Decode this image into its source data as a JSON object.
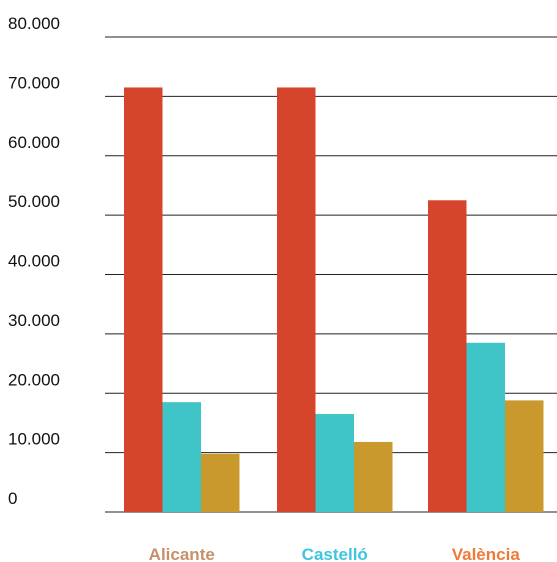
{
  "chart_data": {
    "type": "bar",
    "categories": [
      "Alicante",
      "Castelló",
      "València"
    ],
    "category_label_colors": [
      "#c8906a",
      "#3ec6de",
      "#ef7a3a"
    ],
    "series": [
      {
        "values": [
          71500,
          71500,
          52500
        ],
        "color": "#d4452b"
      },
      {
        "values": [
          18500,
          16500,
          28500
        ],
        "color": "#3fc4c8"
      },
      {
        "values": [
          9800,
          11800,
          18800
        ],
        "color": "#c9992e"
      }
    ],
    "ylim": [
      0,
      80000
    ],
    "yticks": [
      0,
      10000,
      20000,
      30000,
      40000,
      50000,
      60000,
      70000,
      80000
    ],
    "ytick_labels": [
      "0",
      "10.000",
      "20.000",
      "30.000",
      "40.000",
      "50.000",
      "60.000",
      "70.000",
      "80.000"
    ],
    "grid": true,
    "grid_color": "#222222"
  }
}
